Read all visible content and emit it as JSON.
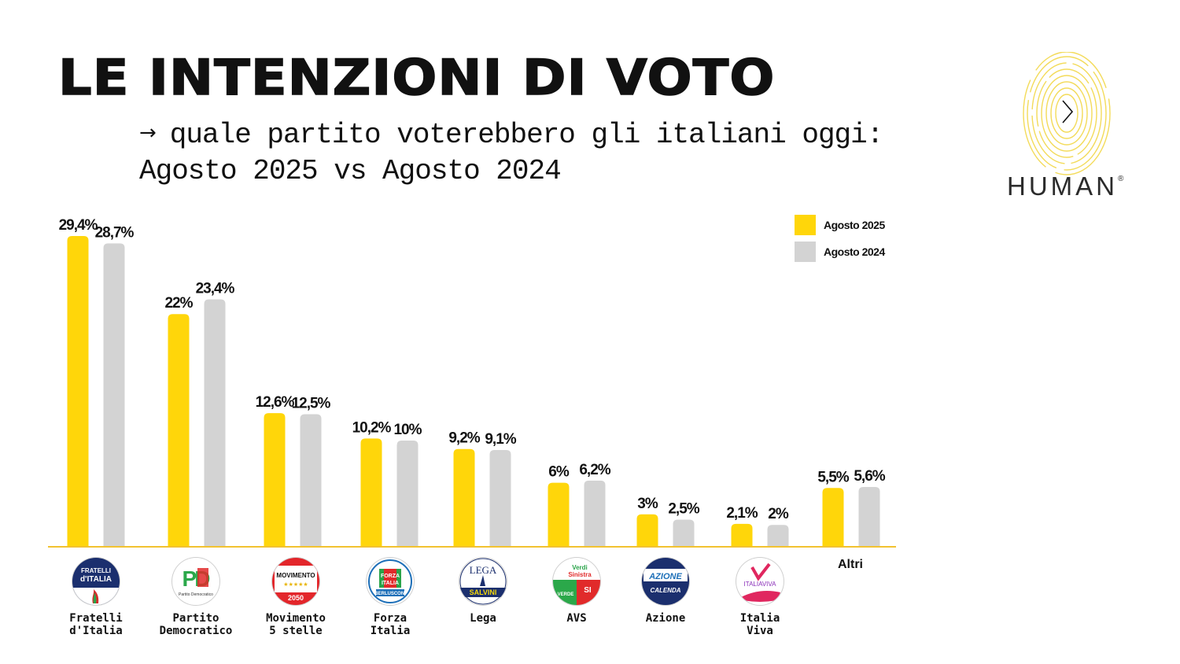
{
  "header": {
    "title": "LE INTENZIONI DI VOTO",
    "subtitle_arrow": "→",
    "subtitle_line1": "quale partito voterebbero gli italiani oggi:",
    "subtitle_line2": "Agosto 2025 vs Agosto 2024"
  },
  "brand": {
    "name": "HUMAN",
    "registered": "®",
    "icon": "fingerprint-arrow-icon"
  },
  "colors": {
    "series_2025": "#FFD60A",
    "series_2024": "#D3D3D3",
    "baseline": "#F2C230",
    "text": "#111111"
  },
  "chart_data": {
    "type": "bar",
    "title": "LE INTENZIONI DI VOTO",
    "subtitle": "quale partito voterebbero gli italiani oggi: Agosto 2025 vs Agosto 2024",
    "xlabel": "",
    "ylabel": "",
    "ylim": [
      0,
      30
    ],
    "grid": false,
    "legend_position": "top-right",
    "categories": [
      "Fratelli d'Italia",
      "Partito Democratico",
      "Movimento 5 stelle",
      "Forza Italia",
      "Lega",
      "AVS",
      "Azione",
      "Italia Viva",
      "Altri"
    ],
    "category_labels": [
      "Fratelli\nd'Italia",
      "Partito\nDemocratico",
      "Movimento\n5 stelle",
      "Forza\nItalia",
      "Lega",
      "AVS",
      "Azione",
      "Italia\nViva",
      "Altri"
    ],
    "series": [
      {
        "name": "Agosto 2025",
        "values": [
          29.4,
          22,
          12.6,
          10.2,
          9.2,
          6,
          3,
          2.1,
          5.5
        ],
        "labels": [
          "29,4%",
          "22%",
          "12,6%",
          "10,2%",
          "9,2%",
          "6%",
          "3%",
          "2,1%",
          "5,5%"
        ]
      },
      {
        "name": "Agosto 2024",
        "values": [
          28.7,
          23.4,
          12.5,
          10,
          9.1,
          6.2,
          2.5,
          2,
          5.6
        ],
        "labels": [
          "28,7%",
          "23,4%",
          "12,5%",
          "10%",
          "9,1%",
          "6,2%",
          "2,5%",
          "2%",
          "5,6%"
        ]
      }
    ]
  },
  "party_logos": [
    {
      "name": "fratelli-d-italia-logo",
      "text1": "FRATELLI",
      "text2": "d'ITALIA"
    },
    {
      "name": "partito-democratico-logo",
      "text1": "PD",
      "text2": "Partito Democratico"
    },
    {
      "name": "movimento-5-stelle-logo",
      "text1": "MOVIMENTO",
      "text2": "2050",
      "stars": "★★★★★"
    },
    {
      "name": "forza-italia-logo",
      "text1": "FORZA",
      "text2": "ITALIA",
      "text3": "BERLUSCONI"
    },
    {
      "name": "lega-logo",
      "text1": "LEGA",
      "text2": "SALVINI"
    },
    {
      "name": "avs-logo",
      "text1": "Verdi",
      "text2": "Sinistra",
      "text3": "VERDE",
      "text4": "SI"
    },
    {
      "name": "azione-logo",
      "text1": "AZIONE",
      "text2": "CALENDA"
    },
    {
      "name": "italia-viva-logo",
      "text1": "ITALIAVIVA"
    }
  ]
}
